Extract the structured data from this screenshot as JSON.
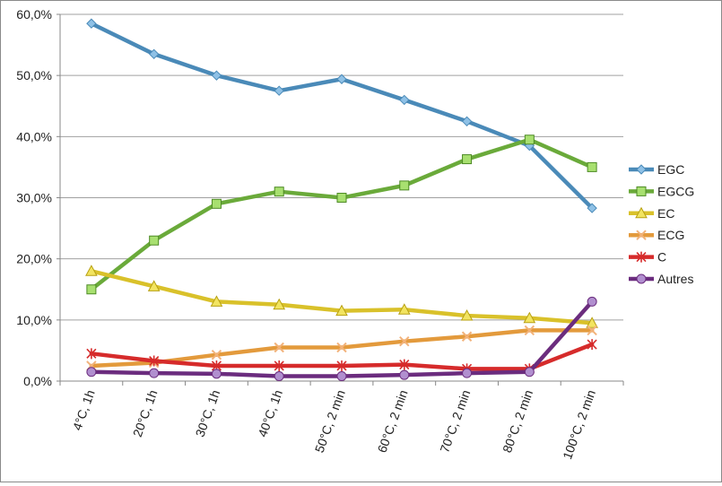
{
  "chart_data": {
    "type": "line",
    "title": "",
    "xlabel": "",
    "ylabel": "",
    "categories": [
      "4°C, 1h",
      "20°C, 1h",
      "30°C, 1h",
      "40°C, 1h",
      "50°C, 2 min",
      "60°C, 2 min",
      "70°C, 2 min",
      "80°C, 2 min",
      "100°C, 2 min"
    ],
    "ylim": [
      0,
      60
    ],
    "yticks": [
      0,
      10,
      20,
      30,
      40,
      50,
      60
    ],
    "ytick_labels": [
      "0,0%",
      "10,0%",
      "20,0%",
      "30,0%",
      "40,0%",
      "50,0%",
      "60,0%"
    ],
    "grid": "horizontal",
    "legend_position": "right",
    "series": [
      {
        "name": "EGC",
        "color": "#4a8ab8",
        "marker": "diamond",
        "values": [
          58.5,
          53.5,
          50.0,
          47.5,
          49.4,
          46.0,
          42.5,
          38.5,
          28.3
        ]
      },
      {
        "name": "EGCG",
        "color": "#6aaa3a",
        "marker": "square",
        "values": [
          15.0,
          23.0,
          29.0,
          31.0,
          30.0,
          32.0,
          36.3,
          39.5,
          35.0
        ]
      },
      {
        "name": "EC",
        "color": "#d9c12a",
        "marker": "triangle",
        "values": [
          18.0,
          15.5,
          13.0,
          12.5,
          11.5,
          11.7,
          10.7,
          10.3,
          9.5
        ]
      },
      {
        "name": "ECG",
        "color": "#e39a3c",
        "marker": "x",
        "values": [
          2.5,
          3.0,
          4.3,
          5.5,
          5.5,
          6.5,
          7.3,
          8.3,
          8.3
        ]
      },
      {
        "name": "C",
        "color": "#d62b2b",
        "marker": "star",
        "values": [
          4.5,
          3.3,
          2.5,
          2.5,
          2.5,
          2.7,
          2.0,
          2.0,
          6.0
        ]
      },
      {
        "name": "Autres",
        "color": "#6b2c7e",
        "marker": "circle",
        "values": [
          1.5,
          1.3,
          1.2,
          0.8,
          0.8,
          1.0,
          1.3,
          1.5,
          13.0
        ]
      }
    ]
  }
}
